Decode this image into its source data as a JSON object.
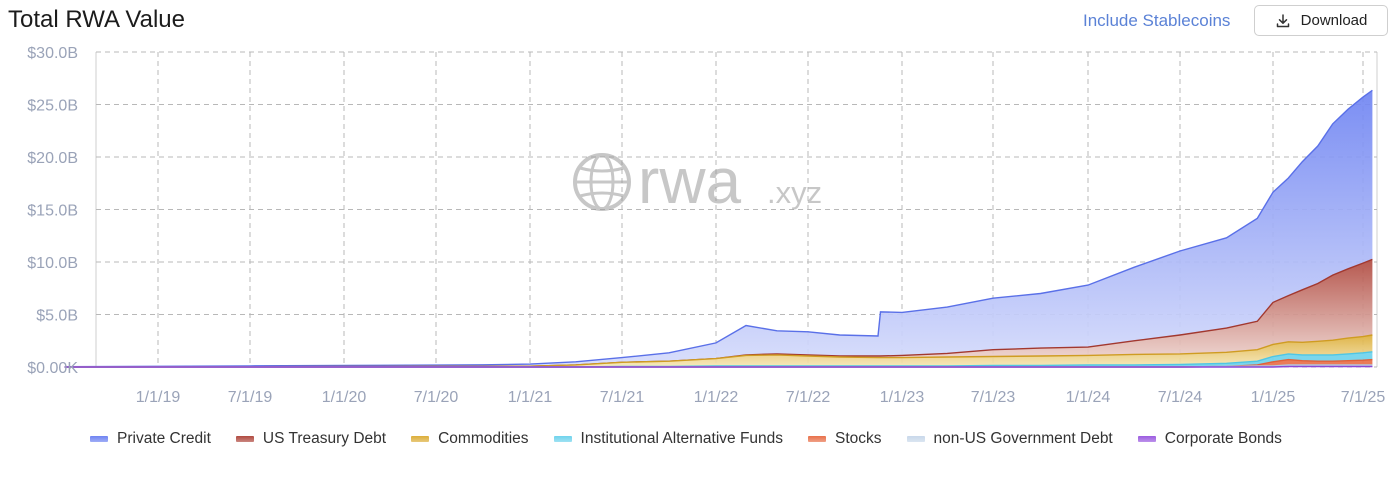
{
  "header": {
    "title": "Total RWA Value",
    "include_stablecoins_label": "Include Stablecoins",
    "download_label": "Download",
    "download_icon": "download-icon"
  },
  "watermark": {
    "icon": "globe-icon",
    "text_main": "rwa",
    "text_suffix": ".xyz"
  },
  "colors": {
    "private_credit_top": "#6f84f2",
    "private_credit_bottom": "#d6dcfb",
    "treasury_top": "#b04a40",
    "treasury_bottom": "#f1dcd7",
    "commodities_top": "#dcae3a",
    "commodities_bottom": "#f6e7b8",
    "alt_funds": "#6fd3ec",
    "stocks": "#e8704a",
    "non_us_gov": "#c9d8ea",
    "corporate": "#9b5be0",
    "tick_label": "#9aa3b8",
    "grid": "#b8b8b8"
  },
  "chart_data": {
    "type": "area",
    "stacked": true,
    "title": "Total RWA Value",
    "x_tick_labels": [
      "1/1/19",
      "7/1/19",
      "1/1/20",
      "7/1/20",
      "1/1/21",
      "7/1/21",
      "1/1/22",
      "7/1/22",
      "1/1/23",
      "7/1/23",
      "1/1/24",
      "7/1/24",
      "1/1/25",
      "7/1/25"
    ],
    "y_tick_labels": [
      "$0.00K",
      "$5.0B",
      "$10.0B",
      "$15.0B",
      "$20.0B",
      "$25.0B",
      "$30.0B"
    ],
    "ylim": [
      0,
      30
    ],
    "y_unit": "billion USD",
    "grid": true,
    "legend_position": "bottom",
    "x": [
      "2018-07-01",
      "2019-01-01",
      "2019-07-01",
      "2020-01-01",
      "2020-07-01",
      "2020-10-01",
      "2021-01-01",
      "2021-04-01",
      "2021-07-01",
      "2021-10-01",
      "2022-01-01",
      "2022-03-01",
      "2022-05-01",
      "2022-07-01",
      "2022-09-01",
      "2022-11-15",
      "2022-11-20",
      "2023-01-01",
      "2023-04-01",
      "2023-07-01",
      "2023-10-01",
      "2024-01-01",
      "2024-04-01",
      "2024-07-01",
      "2024-10-01",
      "2024-12-01",
      "2025-01-01",
      "2025-02-01",
      "2025-03-01",
      "2025-04-01",
      "2025-05-01",
      "2025-06-01",
      "2025-07-01",
      "2025-07-20"
    ],
    "series": [
      {
        "name": "Corporate Bonds",
        "values": [
          0,
          0,
          0,
          0,
          0,
          0,
          0,
          0,
          0,
          0,
          0,
          0,
          0,
          0,
          0,
          0,
          0,
          0,
          0,
          0,
          0,
          0,
          0,
          0,
          0,
          0,
          0,
          0.05,
          0.05,
          0.05,
          0.05,
          0.05,
          0.05,
          0.05
        ]
      },
      {
        "name": "non-US Government Debt",
        "values": [
          0,
          0,
          0,
          0,
          0,
          0,
          0,
          0,
          0,
          0,
          0,
          0,
          0,
          0,
          0,
          0,
          0,
          0,
          0,
          0,
          0,
          0,
          0,
          0,
          0.05,
          0.1,
          0.1,
          0.15,
          0.15,
          0.15,
          0.15,
          0.15,
          0.15,
          0.15
        ]
      },
      {
        "name": "Stocks",
        "values": [
          0,
          0,
          0,
          0,
          0,
          0,
          0,
          0,
          0,
          0,
          0,
          0,
          0,
          0,
          0,
          0,
          0,
          0,
          0,
          0,
          0,
          0,
          0,
          0,
          0,
          0.1,
          0.4,
          0.5,
          0.4,
          0.35,
          0.35,
          0.4,
          0.45,
          0.5
        ]
      },
      {
        "name": "Institutional Alternative Funds",
        "values": [
          0,
          0,
          0,
          0,
          0,
          0,
          0,
          0,
          0.05,
          0.05,
          0.1,
          0.1,
          0.1,
          0.1,
          0.1,
          0.1,
          0.1,
          0.1,
          0.1,
          0.15,
          0.15,
          0.2,
          0.2,
          0.25,
          0.3,
          0.35,
          0.5,
          0.55,
          0.55,
          0.6,
          0.6,
          0.65,
          0.7,
          0.75
        ]
      },
      {
        "name": "Commodities",
        "values": [
          0,
          0.02,
          0.03,
          0.04,
          0.05,
          0.06,
          0.08,
          0.2,
          0.4,
          0.5,
          0.7,
          1.0,
          1.05,
          0.95,
          0.85,
          0.8,
          0.8,
          0.8,
          0.85,
          0.85,
          0.9,
          0.9,
          1.0,
          1.0,
          1.05,
          1.1,
          1.15,
          1.15,
          1.2,
          1.3,
          1.4,
          1.5,
          1.55,
          1.6
        ]
      },
      {
        "name": "US Treasury Debt",
        "values": [
          0,
          0,
          0,
          0,
          0,
          0,
          0,
          0,
          0,
          0,
          0,
          0.05,
          0.1,
          0.1,
          0.1,
          0.15,
          0.15,
          0.2,
          0.35,
          0.65,
          0.75,
          0.8,
          1.3,
          1.8,
          2.3,
          2.7,
          4.0,
          4.4,
          5.0,
          5.5,
          6.2,
          6.6,
          7.0,
          7.2
        ]
      },
      {
        "name": "Private Credit",
        "values": [
          0.03,
          0.05,
          0.07,
          0.1,
          0.13,
          0.15,
          0.2,
          0.3,
          0.45,
          0.8,
          1.5,
          2.8,
          2.2,
          2.2,
          2.0,
          1.9,
          4.2,
          4.1,
          4.4,
          4.9,
          5.2,
          5.9,
          7.0,
          8.0,
          8.6,
          9.8,
          10.5,
          11.2,
          12.2,
          13.1,
          14.4,
          15.2,
          15.8,
          16.1
        ]
      }
    ]
  },
  "legend": [
    {
      "name": "Private Credit",
      "color": "#6f84f2"
    },
    {
      "name": "US Treasury Debt",
      "color": "#b04a40"
    },
    {
      "name": "Commodities",
      "color": "#dcae3a"
    },
    {
      "name": "Institutional Alternative Funds",
      "color": "#6fd3ec"
    },
    {
      "name": "Stocks",
      "color": "#e8704a"
    },
    {
      "name": "non-US Government Debt",
      "color": "#c9d8ea"
    },
    {
      "name": "Corporate Bonds",
      "color": "#9b5be0"
    }
  ]
}
